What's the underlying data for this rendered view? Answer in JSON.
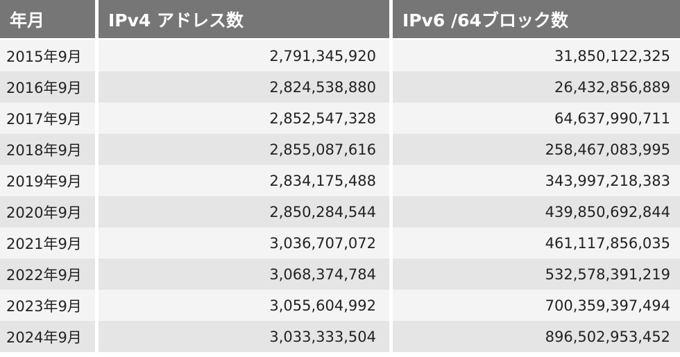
{
  "table": {
    "headers": [
      "年月",
      "IPv4 アドレス数",
      "IPv6 /64ブロック数"
    ],
    "rows": [
      [
        "2015年9月",
        "2,791,345,920",
        "31,850,122,325"
      ],
      [
        "2016年9月",
        "2,824,538,880",
        "26,432,856,889"
      ],
      [
        "2017年9月",
        "2,852,547,328",
        "64,637,990,711"
      ],
      [
        "2018年9月",
        "2,855,087,616",
        "258,467,083,995"
      ],
      [
        "2019年9月",
        "2,834,175,488",
        "343,997,218,383"
      ],
      [
        "2020年9月",
        "2,850,284,544",
        "439,850,692,844"
      ],
      [
        "2021年9月",
        "3,036,707,072",
        "461,117,856,035"
      ],
      [
        "2022年9月",
        "3,068,374,784",
        "532,578,391,219"
      ],
      [
        "2023年9月",
        "3,055,604,992",
        "700,359,397,494"
      ],
      [
        "2024年9月",
        "3,033,333,504",
        "896,502,953,452"
      ]
    ]
  },
  "colors": {
    "header_bg": "#767676",
    "header_text": "#ffffff",
    "row_light": "#f4f4f4",
    "row_dark": "#e5e5e5"
  }
}
